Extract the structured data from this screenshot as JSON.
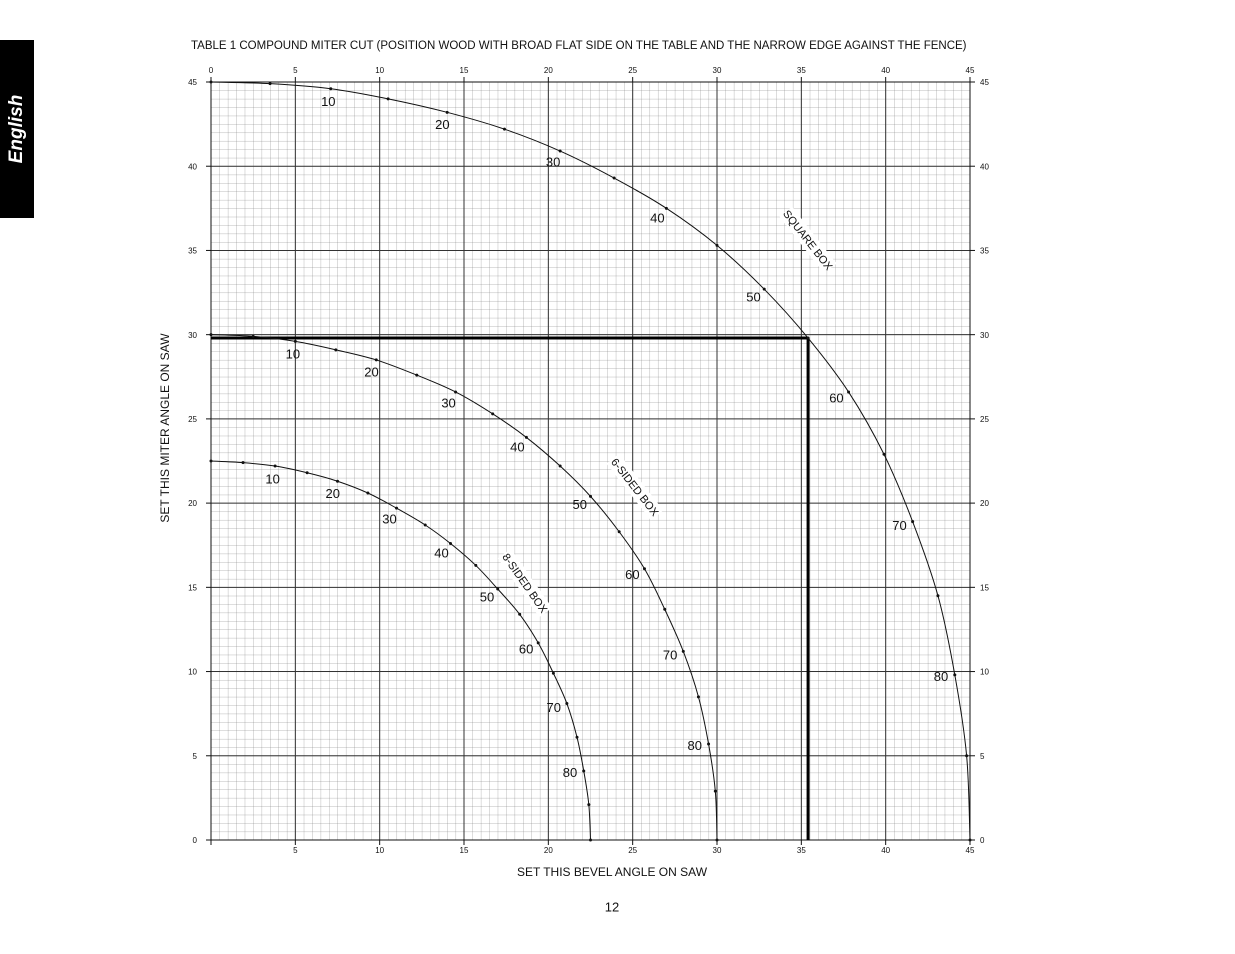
{
  "sidebar": "English",
  "page_number": "12",
  "chart_data": {
    "type": "line",
    "title": "TABLE 1   COMPOUND MITER CUT (POSITION WOOD WITH BROAD FLAT SIDE ON THE TABLE  AND THE NARROW EDGE AGAINST THE FENCE)",
    "x_label": "SET THIS BEVEL ANGLE ON SAW",
    "y_label": "SET THIS MITER ANGLE ON SAW",
    "xlim": [
      0,
      45
    ],
    "ylim": [
      0,
      45
    ],
    "xticks": [
      0,
      5,
      10,
      15,
      20,
      25,
      30,
      35,
      40,
      45
    ],
    "yticks": [
      0,
      5,
      10,
      15,
      20,
      25,
      30,
      35,
      40,
      45
    ],
    "grid": true,
    "color": "#111111",
    "reference": {
      "x": 35.4,
      "y": 29.8
    },
    "series": [
      {
        "name": "SQUARE BOX",
        "x": [
          0,
          3.5,
          7.1,
          10.5,
          14.0,
          17.4,
          20.7,
          23.9,
          27.0,
          30.0,
          32.8,
          35.4,
          37.8,
          39.9,
          41.6,
          43.1,
          44.1,
          44.8,
          45
        ],
        "values": [
          45,
          44.9,
          44.6,
          44.0,
          43.2,
          42.2,
          40.9,
          39.3,
          37.5,
          35.3,
          32.7,
          29.8,
          26.6,
          22.9,
          18.9,
          14.5,
          9.8,
          5.0,
          0
        ],
        "labels": [
          10,
          20,
          30,
          40,
          50,
          60,
          70,
          80
        ]
      },
      {
        "name": "6-SIDED BOX",
        "x": [
          0,
          2.5,
          5.0,
          7.4,
          9.8,
          12.2,
          14.5,
          16.7,
          18.7,
          20.7,
          22.5,
          24.2,
          25.7,
          26.9,
          28.0,
          28.9,
          29.5,
          29.9,
          30
        ],
        "values": [
          30,
          29.9,
          29.6,
          29.1,
          28.5,
          27.6,
          26.6,
          25.3,
          23.9,
          22.2,
          20.4,
          18.3,
          16.1,
          13.7,
          11.2,
          8.5,
          5.7,
          2.9,
          0
        ],
        "labels": [
          10,
          20,
          30,
          40,
          50,
          60,
          70,
          80
        ]
      },
      {
        "name": "8-SIDED BOX",
        "x": [
          0,
          1.9,
          3.8,
          5.7,
          7.5,
          9.3,
          11.0,
          12.7,
          14.2,
          15.7,
          17.0,
          18.3,
          19.4,
          20.3,
          21.1,
          21.7,
          22.1,
          22.4,
          22.5
        ],
        "values": [
          22.5,
          22.4,
          22.2,
          21.8,
          21.3,
          20.6,
          19.7,
          18.7,
          17.6,
          16.3,
          14.9,
          13.4,
          11.7,
          9.9,
          8.1,
          6.1,
          4.1,
          2.1,
          0
        ],
        "labels": [
          10,
          20,
          30,
          40,
          50,
          60,
          70,
          80
        ]
      }
    ]
  }
}
